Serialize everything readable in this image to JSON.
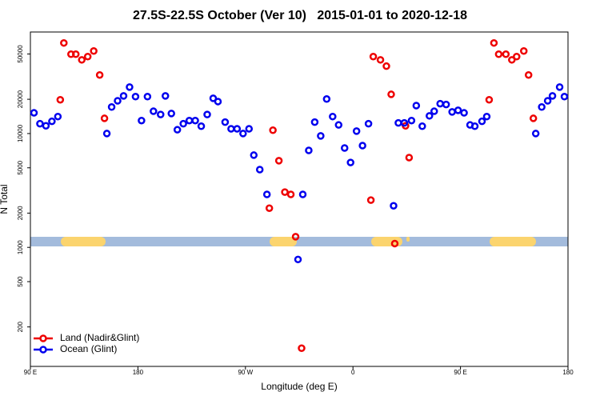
{
  "chart_data": {
    "type": "scatter",
    "title": "27.5S-22.5S October (Ver 10)   2015-01-01 to 2020-12-18",
    "xlabel": "Longitude (deg E)",
    "ylabel": "N Total",
    "xlim": [
      90,
      540
    ],
    "ylim": [
      90,
      78000
    ],
    "log_y": true,
    "legend": "lower left",
    "xticks": [
      {
        "value": 90,
        "label": "90 E"
      },
      180,
      {
        "value": 270,
        "label": "90 W"
      },
      {
        "value": 360,
        "label": "0"
      },
      {
        "value": 450,
        "label": "90 E"
      },
      {
        "value": 540,
        "label": "180"
      }
    ],
    "yticks": [
      200,
      500,
      1000,
      2000,
      5000,
      10000,
      20000,
      50000
    ],
    "series": [
      {
        "name": "Land (Nadir&Glint)",
        "color": "#ee0000",
        "x": [
          115,
          118,
          124,
          128,
          133,
          138,
          143,
          148,
          152,
          293,
          298,
          290,
          303,
          308,
          312,
          317,
          375,
          377,
          383,
          388,
          392,
          395,
          404,
          407,
          474,
          478,
          482,
          488,
          493,
          497,
          503,
          507,
          511
        ],
        "values": [
          19800,
          62500,
          49800,
          49800,
          44400,
          47400,
          53100,
          32700,
          13600,
          10700,
          5770,
          2210,
          3060,
          2920,
          1240,
          130,
          2600,
          47400,
          44400,
          39100,
          22100,
          1080,
          11700,
          6150,
          19800,
          62500,
          49800,
          49800,
          44400,
          47400,
          53100,
          32700,
          13600
        ]
      },
      {
        "name": "Ocean (Glint)",
        "color": "#0000ee",
        "x": [
          93,
          98,
          103,
          108,
          113,
          154,
          158,
          163,
          168,
          173,
          178,
          183,
          188,
          193,
          199,
          203,
          208,
          213,
          218,
          223,
          228,
          233,
          238,
          243,
          247,
          253,
          258,
          263,
          268,
          273,
          277,
          282,
          288,
          318,
          314,
          323,
          328,
          333,
          338,
          343,
          348,
          353,
          358,
          363,
          368,
          373,
          394,
          398,
          403,
          409,
          413,
          418,
          424,
          428,
          433,
          438,
          443,
          448,
          453,
          458,
          462,
          468,
          472,
          513,
          518,
          523,
          527,
          533,
          537
        ],
        "values": [
          15200,
          12200,
          11700,
          12800,
          14100,
          10000,
          17100,
          19400,
          21400,
          25600,
          21100,
          13000,
          21100,
          15700,
          14700,
          21400,
          15000,
          10800,
          12200,
          13000,
          13000,
          11600,
          14700,
          20400,
          19100,
          12600,
          11000,
          11000,
          10000,
          11000,
          6460,
          4820,
          2920,
          2920,
          783,
          7110,
          12600,
          9530,
          20100,
          14100,
          11900,
          7460,
          5570,
          10500,
          7830,
          12200,
          2320,
          12400,
          12400,
          13000,
          17600,
          11600,
          14300,
          15700,
          18300,
          18000,
          15500,
          16000,
          15200,
          11900,
          11600,
          12800,
          14100,
          10000,
          17100,
          19400,
          21400,
          25600,
          21100
        ]
      }
    ]
  }
}
